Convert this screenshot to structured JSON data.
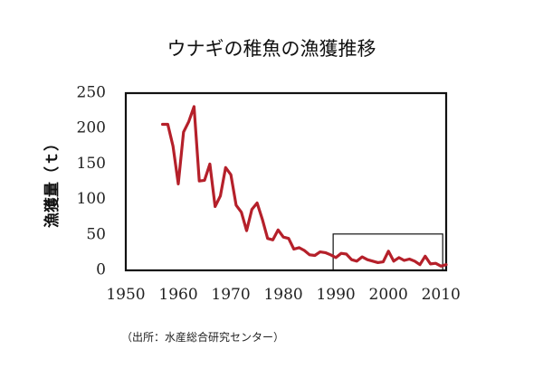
{
  "chart_data": {
    "type": "line",
    "title": "ウナギの稚魚の漁獲推移",
    "ylabel": "漁獲量（ｔ）",
    "xlabel": "",
    "source": "（出所：水産総合研究センター）",
    "xlim": [
      1950,
      2011
    ],
    "ylim": [
      0,
      250
    ],
    "xticks": [
      1950,
      1960,
      1970,
      1980,
      1990,
      2000,
      2010
    ],
    "yticks": [
      0,
      50,
      100,
      150,
      200,
      250
    ],
    "grid": false,
    "line_color": "#b5202a",
    "highlight_box": {
      "x_range": [
        1990,
        2010
      ],
      "y_range": [
        0,
        50
      ]
    },
    "series": [
      {
        "x": [
          1957,
          1958,
          1959,
          1960,
          1961,
          1962,
          1963,
          1964,
          1965,
          1966,
          1967,
          1968,
          1969,
          1970,
          1971,
          1972,
          1973,
          1974,
          1975,
          1976,
          1977,
          1978,
          1979,
          1980,
          1981,
          1982,
          1983,
          1984,
          1985,
          1986,
          1987,
          1988,
          1989,
          1990,
          1991,
          1992,
          1993,
          1994,
          1995,
          1996,
          1997,
          1998,
          1999,
          2000,
          2001,
          2002,
          2003,
          2004,
          2005,
          2006,
          2007,
          2008,
          2009,
          2010,
          2011
        ],
        "values": [
          206,
          206,
          175,
          122,
          195,
          210,
          231,
          126,
          127,
          150,
          90,
          105,
          145,
          135,
          92,
          82,
          56,
          86,
          95,
          72,
          45,
          43,
          57,
          47,
          45,
          30,
          32,
          28,
          22,
          21,
          26,
          25,
          22,
          18,
          24,
          23,
          15,
          13,
          19,
          15,
          13,
          11,
          12,
          27,
          13,
          18,
          14,
          16,
          13,
          8,
          20,
          9,
          10,
          6,
          8
        ]
      }
    ]
  }
}
